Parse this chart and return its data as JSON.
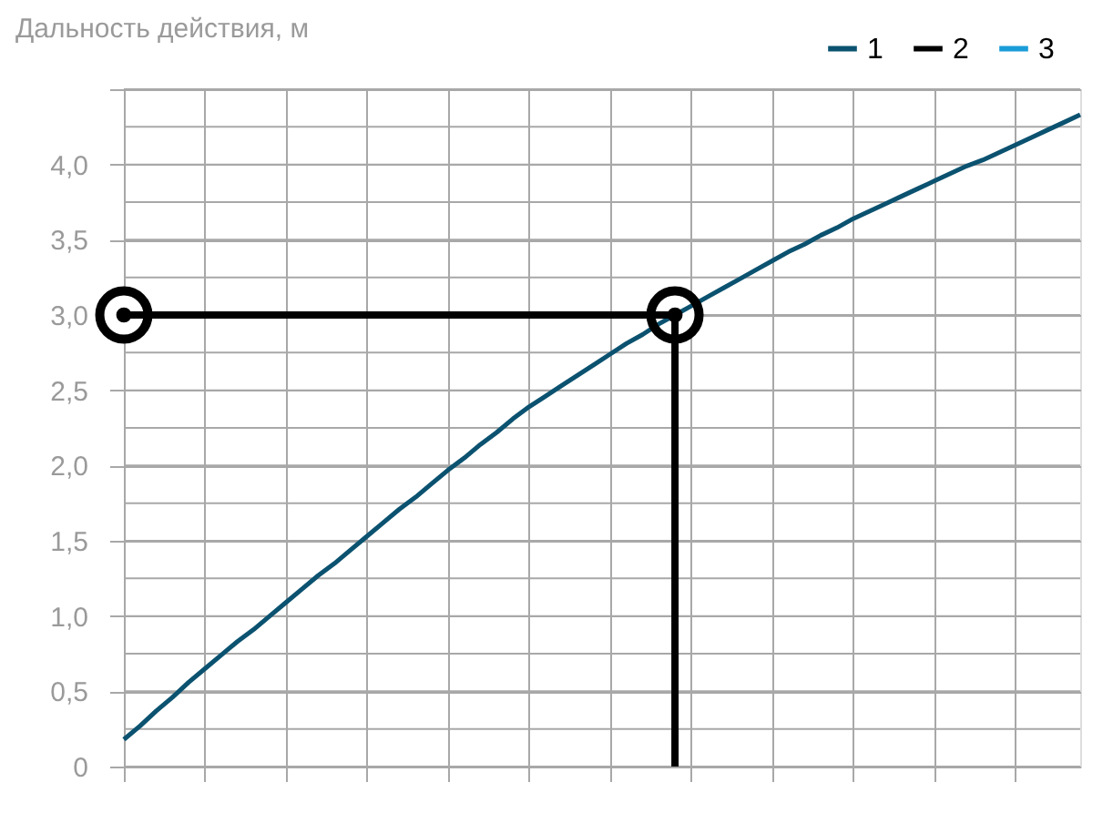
{
  "chart_data": {
    "type": "line",
    "ylabel": "Дальность действия, м",
    "ylim": [
      0,
      4.5
    ],
    "categories": [
      null,
      null,
      null,
      null,
      null,
      null,
      null,
      null,
      null,
      null,
      null,
      null,
      null,
      null,
      null,
      null,
      null,
      null,
      null,
      null,
      null,
      null,
      null,
      null,
      null,
      null,
      null,
      null,
      null,
      null,
      null,
      null,
      null,
      null,
      null,
      null,
      null,
      null,
      null,
      null,
      null,
      null,
      null,
      null,
      null,
      null,
      null,
      null,
      null,
      null,
      null,
      null,
      null,
      null,
      null,
      null,
      null,
      null,
      null,
      null
    ],
    "yticks": [
      {
        "value": 0,
        "label": "0"
      },
      {
        "value": 0.25,
        "label": null
      },
      {
        "value": 0.5,
        "label": "0,5"
      },
      {
        "value": 0.75,
        "label": null
      },
      {
        "value": 1,
        "label": "1,0"
      },
      {
        "value": 1.25,
        "label": null
      },
      {
        "value": 1.5,
        "label": "1,5"
      },
      {
        "value": 1.75,
        "label": null
      },
      {
        "value": 2,
        "label": "2,0"
      },
      {
        "value": 2.25,
        "label": null
      },
      {
        "value": 2.5,
        "label": "2,5"
      },
      {
        "value": 2.75,
        "label": null
      },
      {
        "value": 3,
        "label": "3,0"
      },
      {
        "value": 3.25,
        "label": null
      },
      {
        "value": 3.5,
        "label": "3,5"
      },
      {
        "value": 3.75,
        "label": null
      },
      {
        "value": 4,
        "label": "4,0"
      },
      {
        "value": 4.25,
        "label": null
      },
      {
        "value": 4.5,
        "label": null
      }
    ],
    "tick_labels": "y",
    "grid": true,
    "legend": "top right",
    "series": [
      {
        "name": "1",
        "color": "#0b5270",
        "values": [
          0.18,
          0.27,
          0.37,
          0.46,
          0.56,
          0.65,
          0.74,
          0.83,
          0.91,
          1.0,
          1.09,
          1.18,
          1.27,
          1.35,
          1.44,
          1.53,
          1.62,
          1.71,
          1.79,
          1.88,
          1.97,
          2.05,
          2.14,
          2.22,
          2.31,
          2.39,
          2.46,
          2.53,
          2.6,
          2.67,
          2.74,
          2.81,
          2.87,
          2.94,
          3.0,
          3.06,
          3.12,
          3.18,
          3.24,
          3.3,
          3.36,
          3.42,
          3.47,
          3.53,
          3.58,
          3.64,
          3.69,
          3.74,
          3.79,
          3.84,
          3.89,
          3.94,
          3.99,
          4.03,
          4.08,
          4.13,
          4.18,
          4.23,
          4.28,
          4.33
        ]
      },
      {
        "name": "2",
        "color": "#000000",
        "marker": "circle",
        "values": [
          3.0,
          null,
          null,
          null,
          null,
          null,
          null,
          null,
          null,
          null,
          null,
          null,
          null,
          null,
          null,
          null,
          null,
          null,
          null,
          null,
          null,
          null,
          null,
          null,
          null,
          null,
          null,
          null,
          null,
          null,
          null,
          null,
          null,
          null,
          3.0,
          null,
          null,
          null,
          null,
          null,
          null,
          null,
          null,
          null,
          null,
          null,
          null,
          null,
          null,
          null,
          null,
          null,
          null,
          null,
          null,
          null,
          null,
          null,
          null,
          null
        ],
        "errors": [
          null,
          null,
          null,
          null,
          null,
          null,
          null,
          null,
          null,
          null,
          null,
          null,
          null,
          null,
          null,
          null,
          null,
          null,
          null,
          null,
          null,
          null,
          null,
          null,
          null,
          null,
          null,
          null,
          null,
          null,
          null,
          null,
          null,
          null,
          [
            0,
            3.0
          ],
          null,
          null,
          null,
          null,
          null,
          null,
          null,
          null,
          null,
          null,
          null,
          null,
          null,
          null,
          null,
          null,
          null,
          null,
          null,
          null,
          null,
          null,
          null,
          null,
          null
        ]
      },
      {
        "name": "3",
        "color": "#1a9cd8",
        "values": [
          null,
          null,
          null,
          null,
          null,
          null,
          null,
          null,
          null,
          null,
          null,
          null,
          null,
          null,
          null,
          null,
          null,
          null,
          null,
          null,
          null,
          null,
          null,
          null,
          null,
          null,
          null,
          null,
          null,
          null,
          null,
          null,
          null,
          null,
          null,
          null,
          null,
          null,
          null,
          null,
          null,
          null,
          null,
          null,
          null,
          null,
          null,
          null,
          null,
          null,
          null,
          null,
          null,
          null,
          null,
          null,
          null,
          null,
          null,
          null
        ]
      }
    ]
  }
}
